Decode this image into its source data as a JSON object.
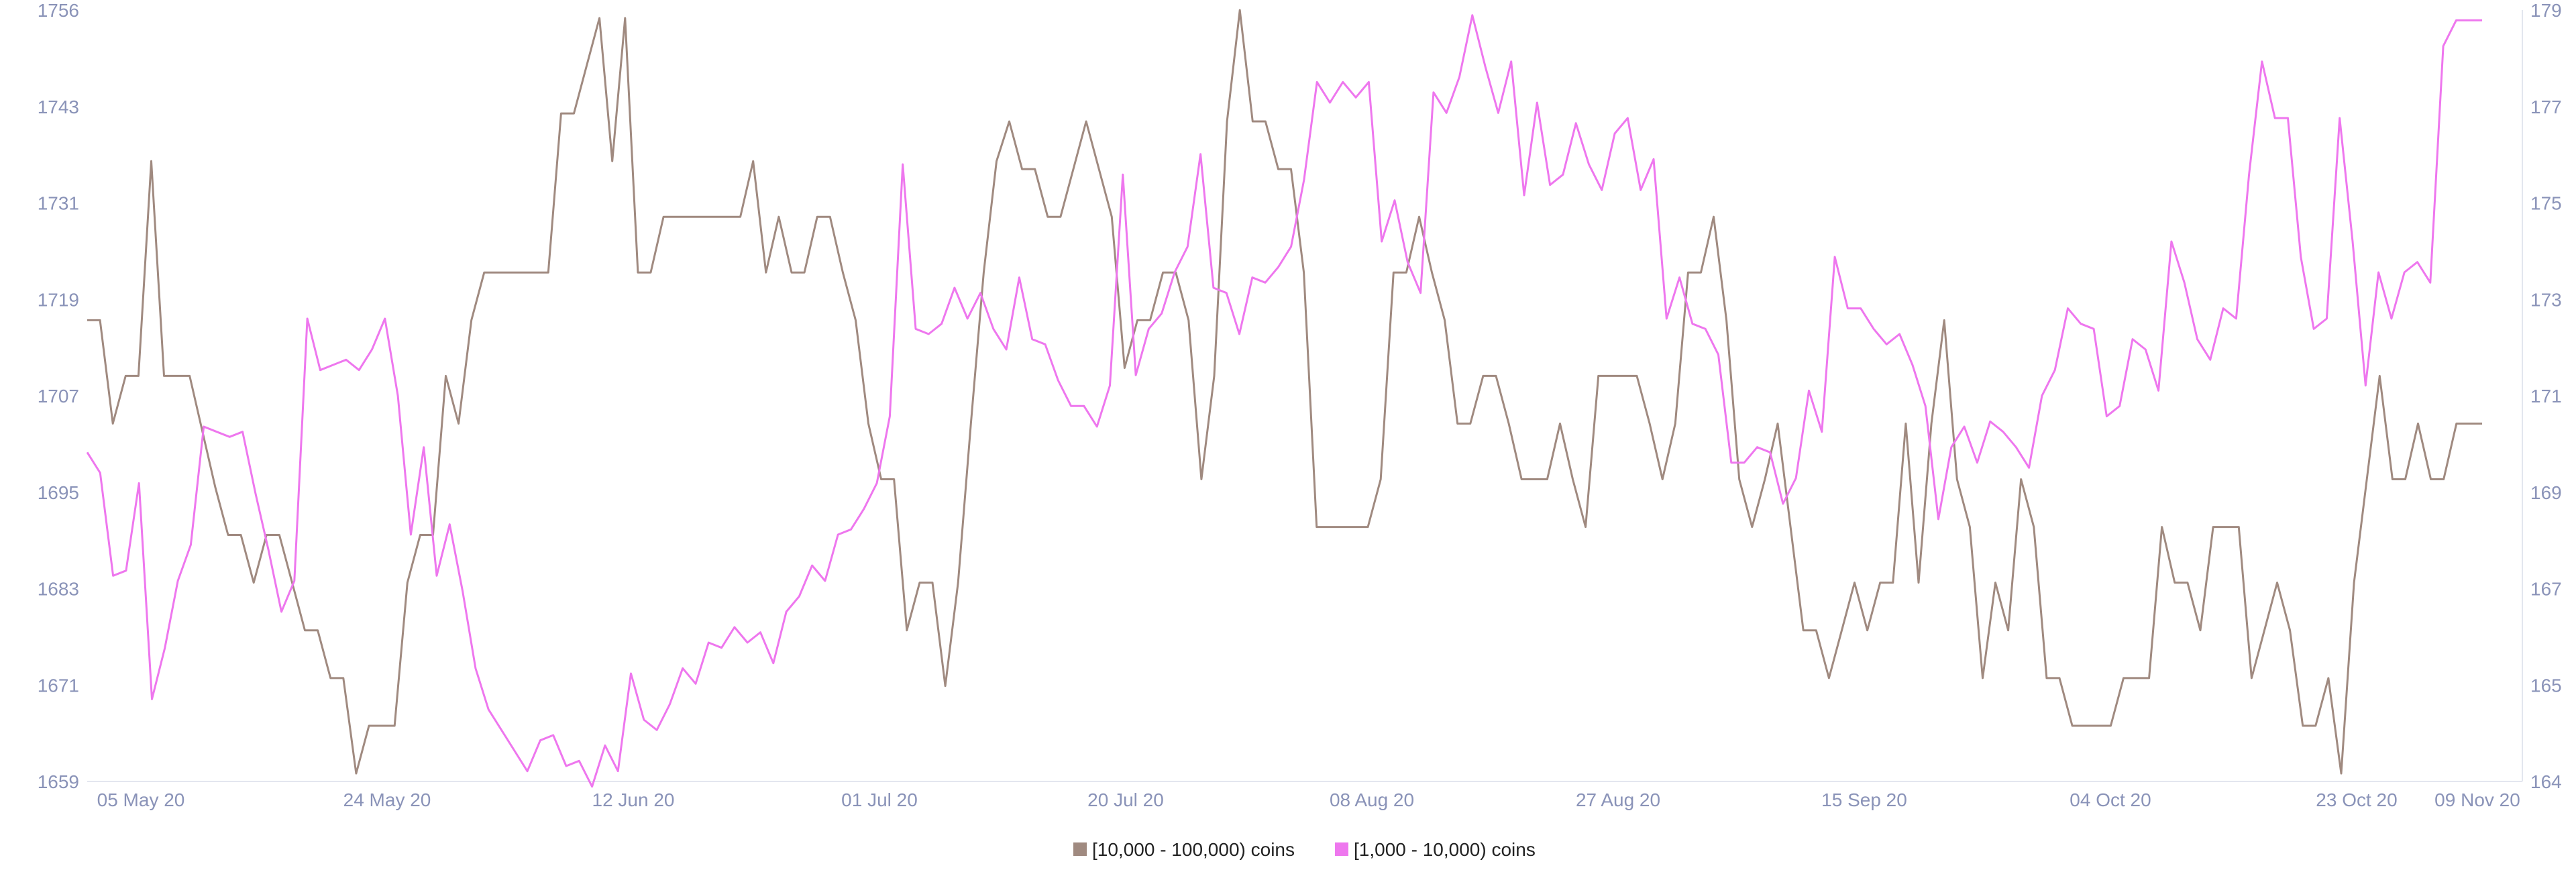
{
  "chart_data": {
    "type": "line",
    "title": "",
    "xlabel": "",
    "ylabel": "",
    "x_ticks": [
      "05 May 20",
      "24 May 20",
      "12 Jun 20",
      "01 Jul 20",
      "20 Jul 20",
      "08 Aug 20",
      "27 Aug 20",
      "15 Sep 20",
      "04 Oct 20",
      "23 Oct 20",
      "09 Nov 20"
    ],
    "xlim": [
      "2020-05-01",
      "2020-11-09"
    ],
    "y_left": {
      "ticks": [
        "1659",
        "1671",
        "1683",
        "1695",
        "1707",
        "1719",
        "1731",
        "1743",
        "1756"
      ],
      "ylim": [
        1659,
        1756
      ]
    },
    "y_right": {
      "ticks": [
        "164",
        "165",
        "167",
        "169",
        "171",
        "173",
        "175",
        "177",
        "179"
      ],
      "ylim": [
        164,
        179
      ]
    },
    "grid": false,
    "legend_position": "bottom-center",
    "series": [
      {
        "name": "[10,000 - 100,000) coins",
        "axis": "left",
        "color": "#a08a80",
        "values": [
          1717,
          1717,
          1704,
          1710,
          1710,
          1737,
          1710,
          1710,
          1710,
          1703,
          1696,
          1690,
          1690,
          1684,
          1690,
          1690,
          1684,
          1678,
          1678,
          1672,
          1672,
          1660,
          1666,
          1666,
          1666,
          1684,
          1690,
          1690,
          1710,
          1704,
          1717,
          1723,
          1723,
          1723,
          1723,
          1723,
          1723,
          1743,
          1743,
          1749,
          1755,
          1737,
          1755,
          1723,
          1723,
          1730,
          1730,
          1730,
          1730,
          1730,
          1730,
          1730,
          1737,
          1723,
          1730,
          1723,
          1723,
          1730,
          1730,
          1723,
          1717,
          1704,
          1697,
          1697,
          1678,
          1684,
          1684,
          1671,
          1684,
          1704,
          1723,
          1737,
          1742,
          1736,
          1736,
          1730,
          1730,
          1736,
          1742,
          1736,
          1730,
          1711,
          1717,
          1717,
          1723,
          1723,
          1717,
          1697,
          1710,
          1742,
          1756,
          1742,
          1742,
          1736,
          1736,
          1723,
          1691,
          1691,
          1691,
          1691,
          1691,
          1697,
          1723,
          1723,
          1730,
          1723,
          1717,
          1704,
          1704,
          1710,
          1710,
          1704,
          1697,
          1697,
          1697,
          1704,
          1697,
          1691,
          1710,
          1710,
          1710,
          1710,
          1704,
          1697,
          1704,
          1723,
          1723,
          1730,
          1717,
          1697,
          1691,
          1697,
          1704,
          1691,
          1678,
          1678,
          1672,
          1678,
          1684,
          1678,
          1684,
          1684,
          1704,
          1684,
          1704,
          1717,
          1697,
          1691,
          1672,
          1684,
          1678,
          1697,
          1691,
          1672,
          1672,
          1666,
          1666,
          1666,
          1666,
          1672,
          1672,
          1672,
          1691,
          1684,
          1684,
          1678,
          1691,
          1691,
          1691,
          1672,
          1678,
          1684,
          1678,
          1666,
          1666,
          1672,
          1660,
          1684,
          1697,
          1710,
          1697,
          1697,
          1704,
          1697,
          1697,
          1704,
          1704,
          1704
        ]
      },
      {
        "name": "[1,000 - 10,000) coins",
        "axis": "right",
        "color": "#ee77ee",
        "values": [
          170.4,
          170.0,
          168.0,
          168.1,
          169.8,
          165.6,
          166.6,
          167.9,
          168.6,
          170.9,
          170.8,
          170.7,
          170.8,
          169.6,
          168.5,
          167.3,
          167.9,
          173.0,
          172.0,
          172.1,
          172.2,
          172.0,
          172.4,
          173.0,
          171.5,
          168.8,
          170.5,
          168.0,
          169.0,
          167.7,
          166.2,
          165.4,
          165.0,
          164.6,
          164.2,
          164.8,
          164.9,
          164.3,
          164.4,
          163.9,
          164.7,
          164.2,
          166.1,
          165.2,
          165.0,
          165.5,
          166.2,
          165.9,
          166.7,
          166.6,
          167.0,
          166.7,
          166.9,
          166.3,
          167.3,
          167.6,
          168.2,
          167.9,
          168.8,
          168.9,
          169.3,
          169.8,
          171.1,
          176.0,
          172.8,
          172.7,
          172.9,
          173.6,
          173.0,
          173.5,
          172.8,
          172.4,
          173.8,
          172.6,
          172.5,
          171.8,
          171.3,
          171.3,
          170.9,
          171.7,
          175.8,
          171.9,
          172.8,
          173.1,
          173.9,
          174.4,
          176.2,
          173.6,
          173.5,
          172.7,
          173.8,
          173.7,
          174.0,
          174.4,
          175.7,
          177.6,
          177.2,
          177.6,
          177.3,
          177.6,
          174.5,
          175.3,
          174.1,
          173.5,
          177.4,
          177.0,
          177.7,
          178.9,
          177.9,
          177.0,
          178.0,
          175.4,
          177.2,
          175.6,
          175.8,
          176.8,
          176.0,
          175.5,
          176.6,
          176.9,
          175.5,
          176.1,
          173.0,
          173.8,
          172.9,
          172.8,
          172.3,
          170.2,
          170.2,
          170.5,
          170.4,
          169.4,
          169.9,
          171.6,
          170.8,
          174.2,
          173.2,
          173.2,
          172.8,
          172.5,
          172.7,
          172.1,
          171.3,
          169.1,
          170.5,
          170.9,
          170.2,
          171.0,
          170.8,
          170.5,
          170.1,
          171.5,
          172.0,
          173.2,
          172.9,
          172.8,
          171.1,
          171.3,
          172.6,
          172.4,
          171.6,
          174.5,
          173.7,
          172.6,
          172.2,
          173.2,
          173.0,
          175.8,
          178.0,
          176.9,
          176.9,
          174.2,
          172.8,
          173.0,
          176.9,
          174.5,
          171.7,
          173.9,
          173.0,
          173.9,
          174.1,
          173.7,
          178.3,
          178.8,
          178.8,
          178.8
        ]
      }
    ]
  }
}
